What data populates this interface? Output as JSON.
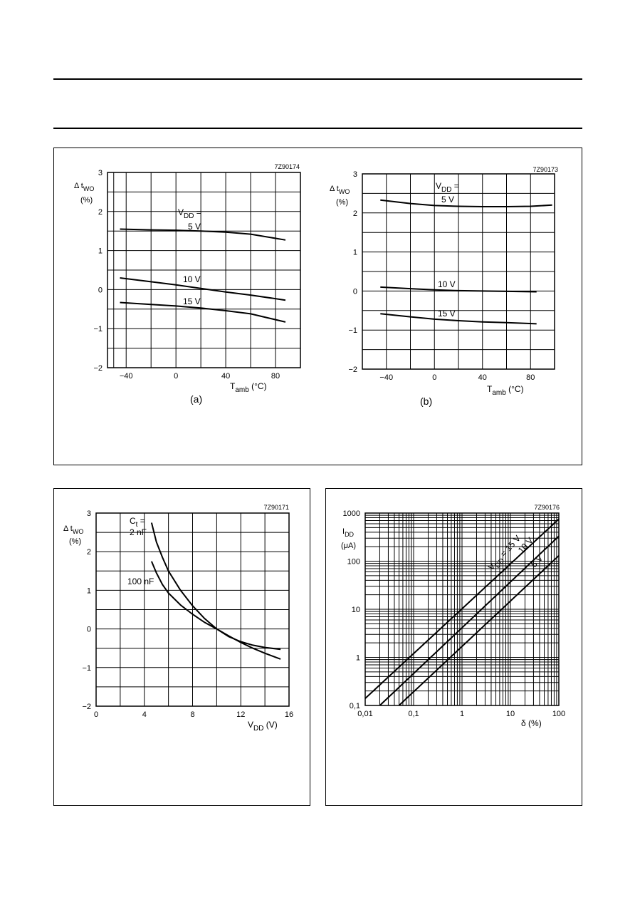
{
  "chart_data": [
    {
      "type": "line",
      "code": "7Z90174",
      "ylabel_main": "Δ t",
      "ylabel_sub": "WO",
      "yunit": "(%)",
      "xlabel_main": "T",
      "xlabel_sub": "amb",
      "xunit": "(°C)",
      "caption": "(a)",
      "xlim": [
        -55,
        100
      ],
      "ylim": [
        -2,
        3
      ],
      "xticks": [
        "−40",
        "0",
        "40",
        "80"
      ],
      "yticks": [
        "3",
        "2",
        "1",
        "0",
        "−1",
        "−2"
      ],
      "series_header": "V",
      "series_header_sub": "DD",
      "series_header_tail": " =",
      "series": [
        {
          "name": "5 V",
          "x": [
            -45,
            -20,
            0,
            20,
            40,
            60,
            88
          ],
          "y": [
            1.55,
            1.53,
            1.52,
            1.5,
            1.47,
            1.42,
            1.27
          ]
        },
        {
          "name": "10 V",
          "x": [
            -45,
            -20,
            0,
            20,
            40,
            60,
            88
          ],
          "y": [
            0.3,
            0.2,
            0.12,
            0.03,
            -0.06,
            -0.14,
            -0.27
          ]
        },
        {
          "name": "15 V",
          "x": [
            -45,
            -20,
            0,
            20,
            40,
            60,
            88
          ],
          "y": [
            -0.33,
            -0.38,
            -0.42,
            -0.47,
            -0.54,
            -0.62,
            -0.83
          ]
        }
      ]
    },
    {
      "type": "line",
      "code": "7Z90173",
      "ylabel_main": "Δ t",
      "ylabel_sub": "WO",
      "yunit": "(%)",
      "xlabel_main": "T",
      "xlabel_sub": "amb",
      "xunit": "(°C)",
      "caption": "(b)",
      "xlim": [
        -60,
        100
      ],
      "ylim": [
        -2,
        3
      ],
      "xticks": [
        "−40",
        "0",
        "40",
        "80"
      ],
      "yticks": [
        "3",
        "2",
        "1",
        "0",
        "−1",
        "−2"
      ],
      "series_header": "V",
      "series_header_sub": "DD",
      "series_header_tail": " =",
      "series": [
        {
          "name": "5 V",
          "x": [
            -45,
            -20,
            0,
            20,
            40,
            60,
            80,
            98
          ],
          "y": [
            2.33,
            2.24,
            2.19,
            2.17,
            2.16,
            2.16,
            2.17,
            2.2
          ]
        },
        {
          "name": "10 V",
          "x": [
            -45,
            -20,
            0,
            20,
            40,
            60,
            85
          ],
          "y": [
            0.1,
            0.06,
            0.03,
            0.01,
            0.0,
            -0.01,
            -0.02
          ]
        },
        {
          "name": "15 V",
          "x": [
            -45,
            -20,
            0,
            20,
            40,
            60,
            85
          ],
          "y": [
            -0.58,
            -0.66,
            -0.72,
            -0.76,
            -0.79,
            -0.81,
            -0.84
          ]
        }
      ]
    },
    {
      "type": "line",
      "code": "7Z90171",
      "ylabel_main": "Δ t",
      "ylabel_sub": "WO",
      "yunit": "(%)",
      "xlabel_main": "V",
      "xlabel_sub": "DD",
      "xunit": "(V)",
      "xlim": [
        0,
        16
      ],
      "ylim": [
        -2,
        3
      ],
      "xticks": [
        "0",
        "4",
        "8",
        "12",
        "16"
      ],
      "yticks": [
        "3",
        "2",
        "1",
        "0",
        "−1",
        "−2"
      ],
      "series_header": "C",
      "series_header_sub": "t",
      "series_header_tail": " =",
      "series": [
        {
          "name": "2 nF",
          "x": [
            4.6,
            5.0,
            5.5,
            6.0,
            7.0,
            8.0,
            9.0,
            10.0,
            11.0,
            12.0,
            13.0,
            14.0,
            15.3
          ],
          "y": [
            2.75,
            2.25,
            1.85,
            1.5,
            1.0,
            0.6,
            0.27,
            0.0,
            -0.2,
            -0.33,
            -0.42,
            -0.48,
            -0.53
          ]
        },
        {
          "name": "100 nF",
          "x": [
            4.6,
            5.0,
            5.5,
            6.0,
            7.0,
            8.0,
            9.0,
            10.0,
            11.0,
            12.0,
            13.0,
            14.0,
            15.3
          ],
          "y": [
            1.75,
            1.45,
            1.15,
            0.93,
            0.62,
            0.38,
            0.17,
            0.0,
            -0.18,
            -0.35,
            -0.5,
            -0.63,
            -0.78
          ]
        }
      ]
    },
    {
      "type": "line",
      "code": "7Z90176",
      "ylabel_main": "I",
      "ylabel_sub": "DD",
      "yunit": "(μA)",
      "xlabel_main": "δ",
      "xlabel_sub": "",
      "xunit": "(%)",
      "xscale": "log",
      "yscale": "log",
      "xlim": [
        0.01,
        100
      ],
      "ylim": [
        0.1,
        1000
      ],
      "xticks": [
        "0,01",
        "0,1",
        "1",
        "10",
        "100"
      ],
      "yticks": [
        "1000",
        "100",
        "10",
        "1",
        "0,1"
      ],
      "series_header": "V",
      "series_header_sub": "DD",
      "series_header_tail": " = 15 V",
      "series": [
        {
          "name": "15 V",
          "x": [
            0.01,
            100
          ],
          "y": [
            0.14,
            750
          ]
        },
        {
          "name": "10 V",
          "x": [
            0.02,
            100
          ],
          "y": [
            0.1,
            330
          ]
        },
        {
          "name": "5 V",
          "x": [
            0.05,
            100
          ],
          "y": [
            0.1,
            130
          ]
        }
      ]
    }
  ]
}
